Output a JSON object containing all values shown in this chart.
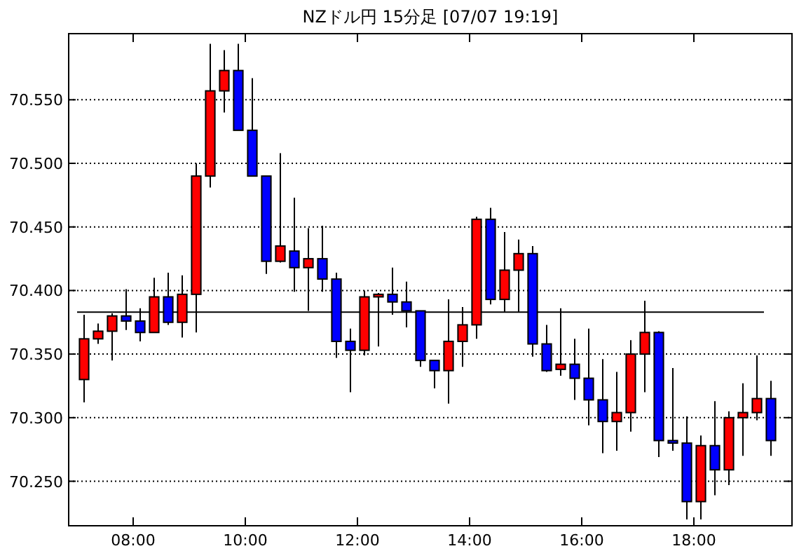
{
  "chart_data": {
    "type": "candlestick",
    "title": "NZドル円 15分足 [07/07 19:19]",
    "x": [
      7.125,
      7.375,
      7.625,
      7.875,
      8.125,
      8.375,
      8.625,
      8.875,
      9.125,
      9.375,
      9.625,
      9.875,
      10.125,
      10.375,
      10.625,
      10.875,
      11.125,
      11.375,
      11.625,
      11.875,
      12.125,
      12.375,
      12.625,
      12.875,
      13.125,
      13.375,
      13.625,
      13.875,
      14.125,
      14.375,
      14.625,
      14.875,
      15.125,
      15.375,
      15.625,
      15.875,
      16.125,
      16.375,
      16.625,
      16.875,
      17.125,
      17.375,
      17.625,
      17.875,
      18.125,
      18.375,
      18.625,
      18.875,
      19.125,
      19.375
    ],
    "ohlc": [
      [
        70.33,
        70.381,
        70.312,
        70.362
      ],
      [
        70.362,
        70.374,
        70.358,
        70.368
      ],
      [
        70.368,
        70.382,
        70.345,
        70.38
      ],
      [
        70.38,
        70.401,
        70.369,
        70.376
      ],
      [
        70.376,
        70.386,
        70.36,
        70.367
      ],
      [
        70.367,
        70.41,
        70.367,
        70.395
      ],
      [
        70.395,
        70.414,
        70.373,
        70.375
      ],
      [
        70.375,
        70.412,
        70.363,
        70.397
      ],
      [
        70.397,
        70.5,
        70.367,
        70.49
      ],
      [
        70.49,
        70.594,
        70.481,
        70.557
      ],
      [
        70.557,
        70.589,
        70.54,
        70.573
      ],
      [
        70.573,
        70.594,
        70.526,
        70.526
      ],
      [
        70.526,
        70.567,
        70.49,
        70.49
      ],
      [
        70.49,
        70.49,
        70.413,
        70.423
      ],
      [
        70.423,
        70.508,
        70.422,
        70.435
      ],
      [
        70.431,
        70.473,
        70.399,
        70.418
      ],
      [
        70.418,
        70.449,
        70.384,
        70.425
      ],
      [
        70.425,
        70.451,
        70.399,
        70.409
      ],
      [
        70.409,
        70.414,
        70.347,
        70.36
      ],
      [
        70.36,
        70.37,
        70.32,
        70.353
      ],
      [
        70.353,
        70.4,
        70.349,
        70.395
      ],
      [
        70.395,
        70.398,
        70.356,
        70.397
      ],
      [
        70.397,
        70.418,
        70.381,
        70.391
      ],
      [
        70.391,
        70.407,
        70.371,
        70.384
      ],
      [
        70.384,
        70.384,
        70.34,
        70.345
      ],
      [
        70.345,
        70.345,
        70.323,
        70.337
      ],
      [
        70.337,
        70.393,
        70.311,
        70.36
      ],
      [
        70.36,
        70.387,
        70.34,
        70.373
      ],
      [
        70.373,
        70.458,
        70.362,
        70.456
      ],
      [
        70.456,
        70.465,
        70.389,
        70.393
      ],
      [
        70.393,
        70.446,
        70.383,
        70.416
      ],
      [
        70.416,
        70.44,
        70.383,
        70.429
      ],
      [
        70.429,
        70.435,
        70.348,
        70.358
      ],
      [
        70.358,
        70.373,
        70.336,
        70.337
      ],
      [
        70.338,
        70.386,
        70.333,
        70.342
      ],
      [
        70.342,
        70.362,
        70.314,
        70.331
      ],
      [
        70.331,
        70.37,
        70.294,
        70.314
      ],
      [
        70.314,
        70.346,
        70.272,
        70.297
      ],
      [
        70.297,
        70.336,
        70.274,
        70.304
      ],
      [
        70.304,
        70.361,
        70.289,
        70.35
      ],
      [
        70.35,
        70.392,
        70.32,
        70.367
      ],
      [
        70.367,
        70.368,
        70.269,
        70.282
      ],
      [
        70.282,
        70.339,
        70.274,
        70.28
      ],
      [
        70.28,
        70.301,
        70.22,
        70.234
      ],
      [
        70.234,
        70.286,
        70.22,
        70.278
      ],
      [
        70.278,
        70.313,
        70.239,
        70.259
      ],
      [
        70.259,
        70.305,
        70.247,
        70.3
      ],
      [
        70.3,
        70.327,
        70.27,
        70.304
      ],
      [
        70.304,
        70.349,
        70.298,
        70.315
      ],
      [
        70.315,
        70.329,
        70.27,
        70.282
      ]
    ],
    "colors": [
      "#ff0000",
      "#ff0000",
      "#ff0000",
      "#0000ff",
      "#0000ff",
      "#ff0000",
      "#0000ff",
      "#ff0000",
      "#ff0000",
      "#ff0000",
      "#ff0000",
      "#0000ff",
      "#0000ff",
      "#0000ff",
      "#ff0000",
      "#0000ff",
      "#ff0000",
      "#0000ff",
      "#0000ff",
      "#0000ff",
      "#ff0000",
      "#ff0000",
      "#0000ff",
      "#0000ff",
      "#0000ff",
      "#0000ff",
      "#ff0000",
      "#ff0000",
      "#ff0000",
      "#0000ff",
      "#ff0000",
      "#ff0000",
      "#0000ff",
      "#0000ff",
      "#ff0000",
      "#0000ff",
      "#0000ff",
      "#0000ff",
      "#ff0000",
      "#ff0000",
      "#ff0000",
      "#0000ff",
      "#0000ff",
      "#0000ff",
      "#ff0000",
      "#0000ff",
      "#ff0000",
      "#ff0000",
      "#ff0000",
      "#0000ff"
    ],
    "xlim": [
      6.85,
      19.75
    ],
    "ylim": [
      70.215,
      70.602
    ],
    "xticks": [
      {
        "value": 8,
        "label": "08:00"
      },
      {
        "value": 10,
        "label": "10:00"
      },
      {
        "value": 12,
        "label": "12:00"
      },
      {
        "value": 14,
        "label": "14:00"
      },
      {
        "value": 16,
        "label": "16:00"
      },
      {
        "value": 18,
        "label": "18:00"
      }
    ],
    "yticks": [
      {
        "value": 70.25,
        "label": "70.250"
      },
      {
        "value": 70.3,
        "label": "70.300"
      },
      {
        "value": 70.35,
        "label": "70.350"
      },
      {
        "value": 70.4,
        "label": "70.400"
      },
      {
        "value": 70.45,
        "label": "70.450"
      },
      {
        "value": 70.5,
        "label": "70.500"
      },
      {
        "value": 70.55,
        "label": "70.550"
      }
    ],
    "grid": "y",
    "ref_lines": [
      {
        "axis": "y",
        "value": 70.383,
        "color": "#000000",
        "line_style": "solid"
      }
    ]
  }
}
